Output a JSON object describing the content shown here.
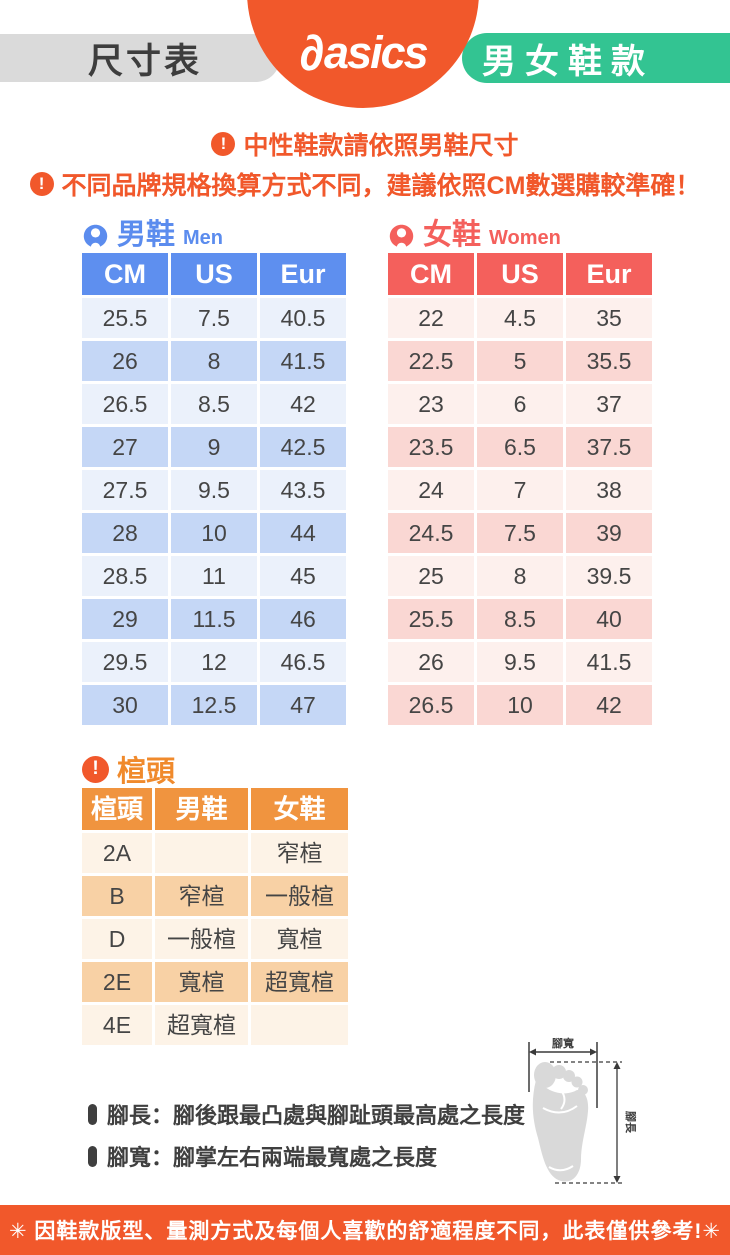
{
  "header": {
    "left_badge": "尺寸表",
    "brand_mark": "∂",
    "brand_word": "asics",
    "right_badge": "男女鞋款"
  },
  "notices": {
    "neutral": "中性鞋款請依照男鞋尺寸",
    "brand_diff": "不同品牌規格換算方式不同，建議依照CM數選購較準確！"
  },
  "men_table": {
    "title_zh": "男鞋",
    "title_en": "Men",
    "columns": [
      "CM",
      "US",
      "Eur"
    ],
    "rows": [
      [
        "25.5",
        "7.5",
        "40.5"
      ],
      [
        "26",
        "8",
        "41.5"
      ],
      [
        "26.5",
        "8.5",
        "42"
      ],
      [
        "27",
        "9",
        "42.5"
      ],
      [
        "27.5",
        "9.5",
        "43.5"
      ],
      [
        "28",
        "10",
        "44"
      ],
      [
        "28.5",
        "11",
        "45"
      ],
      [
        "29",
        "11.5",
        "46"
      ],
      [
        "29.5",
        "12",
        "46.5"
      ],
      [
        "30",
        "12.5",
        "47"
      ]
    ]
  },
  "women_table": {
    "title_zh": "女鞋",
    "title_en": "Women",
    "columns": [
      "CM",
      "US",
      "Eur"
    ],
    "rows": [
      [
        "22",
        "4.5",
        "35"
      ],
      [
        "22.5",
        "5",
        "35.5"
      ],
      [
        "23",
        "6",
        "37"
      ],
      [
        "23.5",
        "6.5",
        "37.5"
      ],
      [
        "24",
        "7",
        "38"
      ],
      [
        "24.5",
        "7.5",
        "39"
      ],
      [
        "25",
        "8",
        "39.5"
      ],
      [
        "25.5",
        "8.5",
        "40"
      ],
      [
        "26",
        "9.5",
        "41.5"
      ],
      [
        "26.5",
        "10",
        "42"
      ]
    ]
  },
  "width_table": {
    "title": "楦頭",
    "columns": [
      "楦頭",
      "男鞋",
      "女鞋"
    ],
    "rows": [
      [
        "2A",
        "",
        "窄楦"
      ],
      [
        "B",
        "窄楦",
        "一般楦"
      ],
      [
        "D",
        "一般楦",
        "寬楦"
      ],
      [
        "2E",
        "寬楦",
        "超寬楦"
      ],
      [
        "4E",
        "超寬楦",
        ""
      ]
    ]
  },
  "foot_notes": {
    "length": "腳長：腳後跟最凸處與腳趾頭最高處之長度",
    "width": "腳寬：腳掌左右兩端最寬處之長度"
  },
  "diagram": {
    "width_label": "腳寬",
    "length_label": "腳長"
  },
  "footer": "✳ 因鞋款版型、量測方式及每個人喜歡的舒適程度不同，此表僅供參考!✳",
  "colors": {
    "brand_orange": "#F1582B",
    "mint_green": "#33C492",
    "badge_gray": "#DADADA",
    "men_blue": "#5E8FEF",
    "men_row_light": "#EBF1FB",
    "men_row_dark": "#C5D7F6",
    "women_red": "#F4605C",
    "women_row_light": "#FDF0ED",
    "women_row_dark": "#FAD7D3",
    "width_orange": "#F0943F",
    "width_row_light": "#FDF3E7",
    "width_row_dark": "#F8D1A5",
    "text_dark": "#3F3F3F"
  }
}
